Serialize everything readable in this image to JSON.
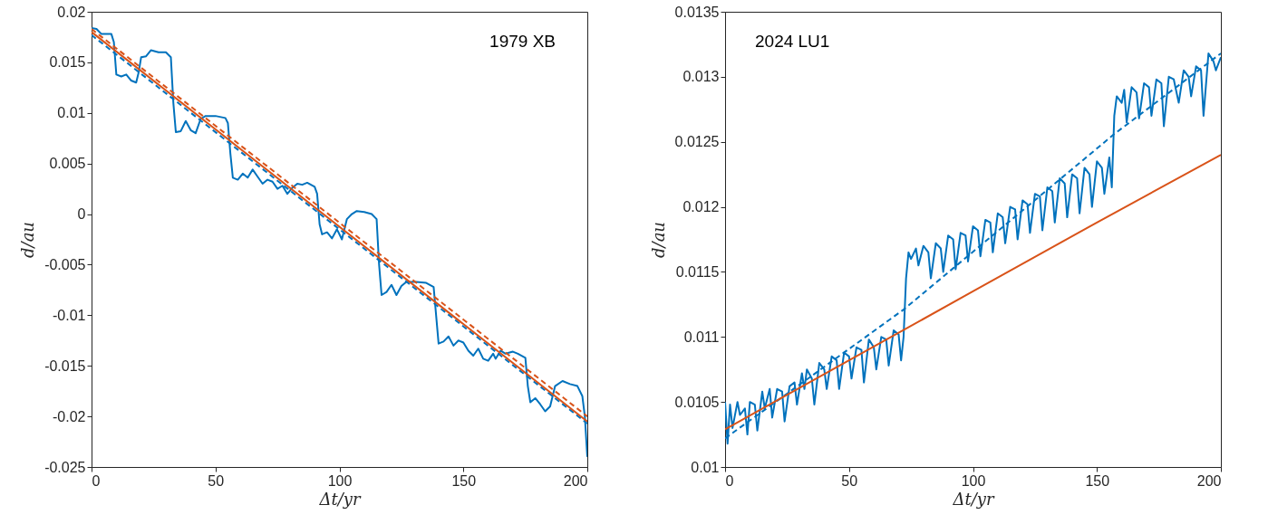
{
  "chart_data": [
    {
      "type": "line",
      "xlabel": "Δt/yr",
      "ylabel": "d/au",
      "annotations": [
        "1979 XB"
      ],
      "xlim": [
        0,
        200
      ],
      "xticks": [
        0,
        50,
        100,
        150,
        200
      ],
      "ylim": [
        -0.025,
        0.02
      ],
      "yticks": [
        -0.025,
        -0.02,
        -0.015,
        -0.01,
        -0.005,
        0,
        0.005,
        0.01,
        0.015,
        0.02
      ],
      "series": [
        {
          "color": "#0072bd",
          "line_style": "solid",
          "x": [
            0,
            2,
            4,
            8,
            9,
            10,
            12,
            14,
            16,
            18,
            19,
            20,
            22,
            24,
            27,
            30,
            32,
            33,
            34,
            36,
            38,
            40,
            42,
            44,
            46,
            50,
            54,
            55,
            56,
            57,
            59,
            61,
            63,
            65,
            67,
            69,
            71,
            73,
            75,
            77,
            79,
            81,
            83,
            85,
            87,
            90,
            91,
            92,
            93,
            95,
            97,
            99,
            101,
            103,
            105,
            107,
            110,
            113,
            115,
            116,
            117,
            119,
            121,
            123,
            125,
            127,
            131,
            135,
            138,
            139,
            140,
            142,
            144,
            146,
            148,
            150,
            152,
            154,
            156,
            158,
            160,
            162,
            163,
            165,
            167,
            170,
            172,
            175,
            176,
            177,
            179,
            181,
            183,
            185,
            187,
            190,
            193,
            196,
            198,
            199,
            200
          ],
          "values": [
            0.0184,
            0.0183,
            0.0178,
            0.0178,
            0.017,
            0.0138,
            0.0136,
            0.0138,
            0.0132,
            0.013,
            0.014,
            0.0155,
            0.0156,
            0.0162,
            0.016,
            0.016,
            0.0155,
            0.011,
            0.0081,
            0.0082,
            0.0092,
            0.0083,
            0.008,
            0.0094,
            0.0097,
            0.0097,
            0.0095,
            0.009,
            0.006,
            0.0036,
            0.0034,
            0.004,
            0.0036,
            0.0044,
            0.0037,
            0.003,
            0.0034,
            0.0032,
            0.0025,
            0.0028,
            0.002,
            0.0026,
            0.003,
            0.0029,
            0.0031,
            0.0027,
            0.002,
            -0.001,
            -0.002,
            -0.0018,
            -0.0024,
            -0.0015,
            -0.0025,
            -0.0005,
            0,
            0.0003,
            0.0002,
            0,
            -0.0005,
            -0.005,
            -0.008,
            -0.0077,
            -0.007,
            -0.008,
            -0.0071,
            -0.0067,
            -0.0067,
            -0.0068,
            -0.0072,
            -0.01,
            -0.0128,
            -0.0126,
            -0.0121,
            -0.013,
            -0.0125,
            -0.0127,
            -0.0135,
            -0.014,
            -0.0133,
            -0.0143,
            -0.0145,
            -0.0138,
            -0.0143,
            -0.0135,
            -0.0138,
            -0.0136,
            -0.0138,
            -0.0142,
            -0.017,
            -0.0186,
            -0.0182,
            -0.0188,
            -0.0195,
            -0.019,
            -0.017,
            -0.0165,
            -0.0168,
            -0.017,
            -0.018,
            -0.02,
            -0.024
          ]
        },
        {
          "color": "#0072bd",
          "line_style": "dashed",
          "x": [
            0,
            200
          ],
          "values": [
            0.0177,
            -0.0207
          ]
        },
        {
          "color": "#d95319",
          "line_style": "solid",
          "x": [
            0,
            200
          ],
          "values": [
            0.018,
            -0.0205
          ]
        },
        {
          "color": "#d95319",
          "line_style": "dashed",
          "x": [
            0,
            200
          ],
          "values": [
            0.0183,
            -0.02
          ]
        }
      ]
    },
    {
      "type": "line",
      "xlabel": "Δt/yr",
      "ylabel": "d/au",
      "annotations": [
        "2024 LU1"
      ],
      "xlim": [
        0,
        200
      ],
      "xticks": [
        0,
        50,
        100,
        150,
        200
      ],
      "ylim": [
        0.01,
        0.0135
      ],
      "yticks": [
        0.01,
        0.0105,
        0.011,
        0.0115,
        0.012,
        0.0125,
        0.013,
        0.0135
      ],
      "series": [
        {
          "color": "#0072bd",
          "line_style": "solid",
          "x": [
            0,
            1,
            2,
            3,
            5,
            6,
            8,
            9,
            10,
            12,
            13,
            15,
            16,
            18,
            19,
            21,
            23,
            24,
            26,
            28,
            29,
            31,
            32,
            33,
            35,
            36,
            38,
            40,
            41,
            43,
            45,
            46,
            48,
            50,
            51,
            53,
            55,
            56,
            58,
            60,
            61,
            63,
            65,
            66,
            68,
            70,
            71,
            72,
            73,
            74,
            75,
            77,
            78,
            80,
            82,
            83,
            85,
            87,
            88,
            90,
            92,
            93,
            95,
            97,
            98,
            100,
            102,
            103,
            105,
            107,
            108,
            110,
            112,
            113,
            115,
            117,
            118,
            120,
            122,
            123,
            125,
            127,
            128,
            130,
            132,
            133,
            135,
            137,
            138,
            140,
            142,
            143,
            145,
            147,
            148,
            150,
            152,
            153,
            155,
            156,
            157,
            158,
            160,
            161,
            162,
            164,
            166,
            167,
            169,
            171,
            172,
            174,
            176,
            177,
            179,
            181,
            183,
            185,
            187,
            188,
            190,
            192,
            193,
            195,
            197,
            198,
            200
          ],
          "values": [
            0.0105,
            0.01018,
            0.01048,
            0.0103,
            0.0105,
            0.0104,
            0.01045,
            0.01025,
            0.0105,
            0.01048,
            0.01028,
            0.01058,
            0.01045,
            0.0106,
            0.01038,
            0.0106,
            0.01058,
            0.01035,
            0.01062,
            0.01065,
            0.01048,
            0.01072,
            0.0106,
            0.01075,
            0.01068,
            0.01048,
            0.0108,
            0.01075,
            0.0106,
            0.01085,
            0.01082,
            0.0106,
            0.01088,
            0.01085,
            0.01068,
            0.01092,
            0.0109,
            0.01065,
            0.01098,
            0.01092,
            0.01075,
            0.011,
            0.01098,
            0.01078,
            0.01105,
            0.01102,
            0.01082,
            0.011,
            0.01145,
            0.01165,
            0.0116,
            0.01168,
            0.01155,
            0.0117,
            0.01165,
            0.01145,
            0.01172,
            0.01168,
            0.0115,
            0.01178,
            0.01175,
            0.01152,
            0.0118,
            0.01178,
            0.01158,
            0.01185,
            0.01182,
            0.01162,
            0.0119,
            0.01188,
            0.01165,
            0.01195,
            0.01192,
            0.01172,
            0.012,
            0.01198,
            0.01175,
            0.01205,
            0.01202,
            0.0118,
            0.0121,
            0.01208,
            0.01182,
            0.01215,
            0.01212,
            0.01188,
            0.01222,
            0.01218,
            0.01192,
            0.01225,
            0.01222,
            0.01195,
            0.0123,
            0.01225,
            0.012,
            0.01235,
            0.0123,
            0.0121,
            0.01238,
            0.01215,
            0.0127,
            0.01285,
            0.0128,
            0.0129,
            0.01265,
            0.01292,
            0.01288,
            0.01268,
            0.01295,
            0.01292,
            0.0127,
            0.01298,
            0.01295,
            0.01262,
            0.013,
            0.01298,
            0.0128,
            0.01305,
            0.013,
            0.01285,
            0.01308,
            0.01305,
            0.0127,
            0.01318,
            0.01312,
            0.01305,
            0.01315
          ]
        },
        {
          "color": "#0072bd",
          "line_style": "dashed",
          "x": [
            0,
            72,
            157,
            200
          ],
          "values": [
            0.01022,
            0.01121,
            0.01256,
            0.01318
          ]
        },
        {
          "color": "#d95319",
          "line_style": "solid",
          "x": [
            0,
            50,
            100,
            150,
            200
          ],
          "values": [
            0.01029,
            0.01082,
            0.01135,
            0.01188,
            0.0124
          ]
        }
      ]
    }
  ]
}
